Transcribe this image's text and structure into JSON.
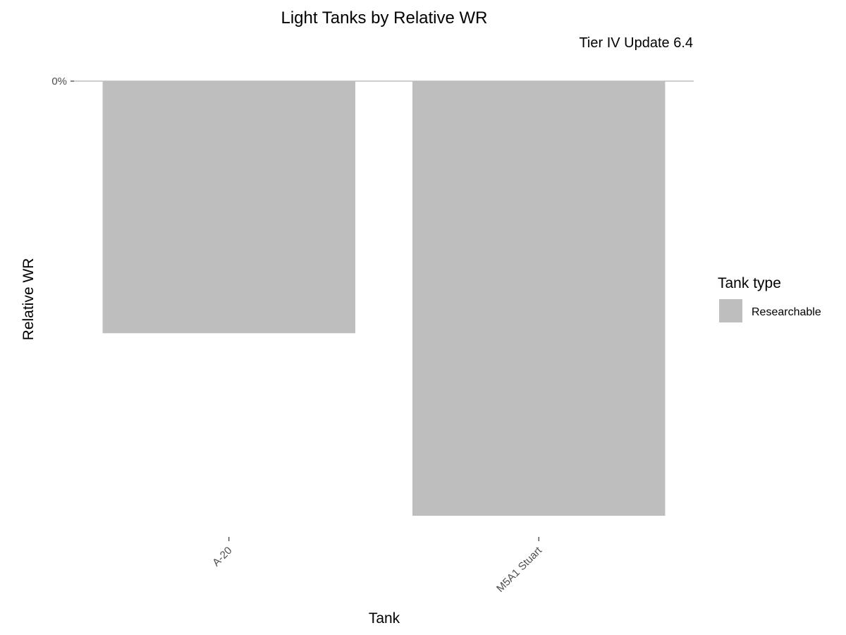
{
  "chart_data": {
    "type": "bar",
    "title": "Light Tanks by Relative WR",
    "subtitle": "Tier IV Update 6.4",
    "xlabel": "Tank",
    "ylabel": "Relative WR",
    "categories": [
      "A-20",
      "M5A1 Stuart"
    ],
    "values": [
      -0.58,
      -1.0
    ],
    "value_note": "no numeric scale printed except 0%; values are proportional estimates relative to M5A1 Stuart",
    "ylim": [
      -1.05,
      0
    ],
    "y_ticks": [
      {
        "value": 0,
        "label": "0%"
      }
    ],
    "grid": false,
    "legend": {
      "title": "Tank type",
      "placement": "right",
      "entries": [
        {
          "label": "Researchable",
          "color": "#bebebe"
        }
      ]
    },
    "colors": {
      "bar": "#bebebe",
      "zero_line": "#bebebe",
      "axis_tick": "#333333"
    }
  }
}
